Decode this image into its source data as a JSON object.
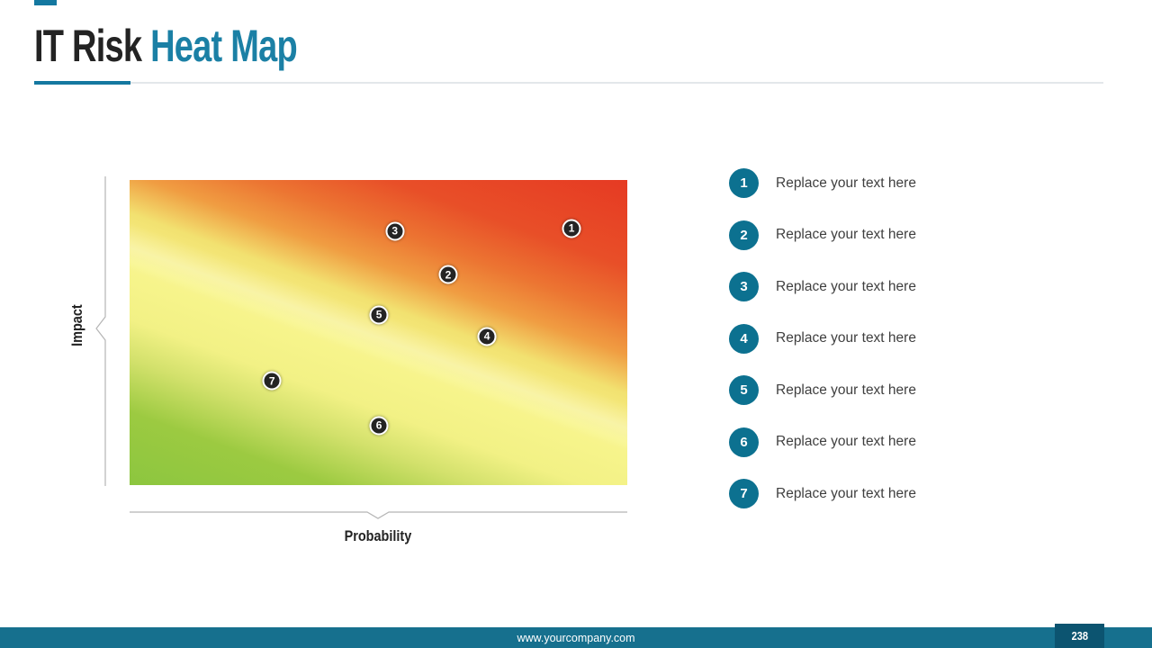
{
  "header": {
    "title_dark": "IT Risk",
    "title_accent": "Heat Map"
  },
  "axes": {
    "x_label": "Probability",
    "y_label": "Impact"
  },
  "legend": {
    "items": [
      {
        "num": "1",
        "label": "Replace your text here"
      },
      {
        "num": "2",
        "label": "Replace your text here"
      },
      {
        "num": "3",
        "label": "Replace your text here"
      },
      {
        "num": "4",
        "label": "Replace your text here"
      },
      {
        "num": "5",
        "label": "Replace your text here"
      },
      {
        "num": "6",
        "label": "Replace your text here"
      },
      {
        "num": "7",
        "label": "Replace your text here"
      }
    ]
  },
  "footer": {
    "url": "www.yourcompany.com",
    "page_number": "238"
  },
  "colors": {
    "accent_teal": "#1478a0",
    "title_accent_teal": "#1b80a5",
    "legend_circle_teal": "#0c7190",
    "footer_bar_teal": "#16708e",
    "page_box_teal": "#0c5470",
    "point_dark": "#242424",
    "heat_green": "#8cc63f",
    "heat_yellow": "#f8f58d",
    "heat_orange": "#f09d42",
    "heat_red": "#e63a23"
  },
  "chart_data": {
    "type": "heatmap",
    "title": "IT Risk Heat Map",
    "xlabel": "Probability",
    "ylabel": "Impact",
    "x_range": [
      0,
      1
    ],
    "y_range": [
      0,
      1
    ],
    "grid": false,
    "legend_position": "right",
    "gradient": {
      "angle_deg": 20,
      "direction": "green at low probability/low impact (bottom-left) to red at high probability/high impact (top-right)",
      "stops": [
        {
          "pos": 0,
          "color": "#8cc63f"
        },
        {
          "pos": 15,
          "color": "#9cca41"
        },
        {
          "pos": 26,
          "color": "#d3e16c"
        },
        {
          "pos": 34,
          "color": "#f2f185"
        },
        {
          "pos": 46,
          "color": "#f8f58d"
        },
        {
          "pos": 56,
          "color": "#f2e170"
        },
        {
          "pos": 64,
          "color": "#f09d42"
        },
        {
          "pos": 72,
          "color": "#ec7532"
        },
        {
          "pos": 82,
          "color": "#e84f28"
        },
        {
          "pos": 100,
          "color": "#e63a23"
        }
      ]
    },
    "points": [
      {
        "id": "1",
        "x_pct": 88.8,
        "y_pct": 15.9,
        "probability": 0.89,
        "impact": 0.84
      },
      {
        "id": "2",
        "x_pct": 64.0,
        "y_pct": 31.0,
        "probability": 0.64,
        "impact": 0.69
      },
      {
        "id": "3",
        "x_pct": 53.3,
        "y_pct": 16.8,
        "probability": 0.53,
        "impact": 0.83
      },
      {
        "id": "4",
        "x_pct": 71.8,
        "y_pct": 51.3,
        "probability": 0.72,
        "impact": 0.49
      },
      {
        "id": "5",
        "x_pct": 50.1,
        "y_pct": 44.2,
        "probability": 0.5,
        "impact": 0.56
      },
      {
        "id": "6",
        "x_pct": 50.1,
        "y_pct": 80.5,
        "probability": 0.5,
        "impact": 0.2
      },
      {
        "id": "7",
        "x_pct": 28.6,
        "y_pct": 65.8,
        "probability": 0.29,
        "impact": 0.34
      }
    ]
  }
}
